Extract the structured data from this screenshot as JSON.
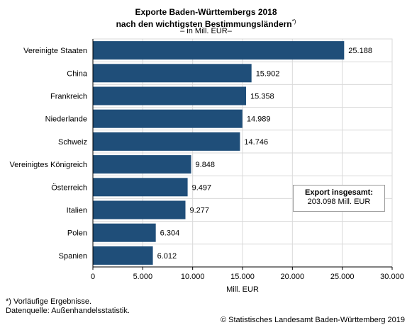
{
  "title_line1": "Exporte Baden-Württembergs 2018",
  "title_line2": "nach den wichtigsten Bestimmungsländern",
  "title_mark": "*)",
  "subtitle": "– in Mill. EUR–",
  "total_label": "Export insgesamt:",
  "total_value": "203.098  Mill. EUR",
  "footnote1": "*) Vorläufige Ergebnisse.",
  "footnote2": "Datenquelle: Außenhandelsstatistik.",
  "copyright": "© Statistisches Landesamt Baden-Württemberg 2019",
  "colors": {
    "bar": "#1f4e79",
    "grid": "#d9d9d9",
    "axis": "#000000"
  },
  "chart_data": {
    "type": "bar",
    "orientation": "horizontal",
    "title": "Exporte Baden-Württembergs 2018 nach den wichtigsten Bestimmungsländern*)",
    "subtitle": "– in Mill. EUR–",
    "xlabel": "Mill. EUR",
    "ylabel": "",
    "xlim": [
      0,
      30000
    ],
    "xticks": [
      0,
      5000,
      10000,
      15000,
      20000,
      25000,
      30000
    ],
    "xtick_labels": [
      "0",
      "5.000",
      "10.000",
      "15.000",
      "20.000",
      "25.000",
      "30.000"
    ],
    "grid": true,
    "categories": [
      "Vereinigte Staaten",
      "China",
      "Frankreich",
      "Niederlande",
      "Schweiz",
      "Vereinigtes Königreich",
      "Österreich",
      "Italien",
      "Polen",
      "Spanien"
    ],
    "values": [
      25188,
      15902,
      15358,
      14989,
      14746,
      9848,
      9497,
      9277,
      6304,
      6012
    ],
    "value_labels": [
      "25.188",
      "15.902",
      "15.358",
      "14.989",
      "14.746",
      "9.848",
      "9.497",
      "9.277",
      "6.304",
      "6.012"
    ]
  }
}
